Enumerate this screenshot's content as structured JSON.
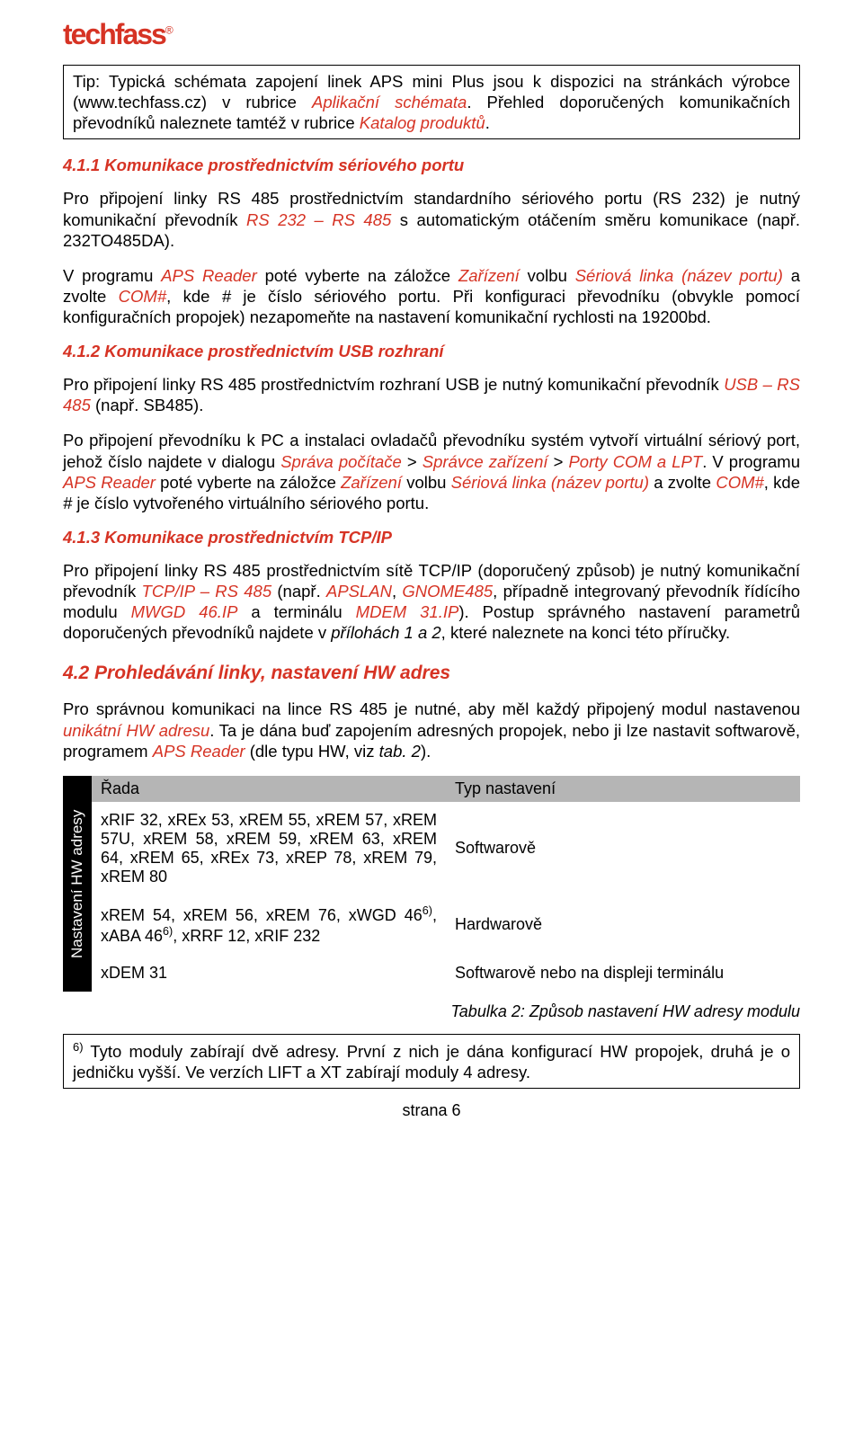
{
  "logo": {
    "text": "techfass",
    "reg": "®"
  },
  "tip": {
    "prefix": "Tip: Typická schémata zapojení linek APS mini Plus jsou k dispozici na stránkách výrobce (www.techfass.cz) v rubrice ",
    "r1": "Aplikační schémata",
    "mid": ". Přehled doporučených komunikačních převodníků naleznete tamtéž v rubrice ",
    "r2": "Katalog produktů",
    "suffix": "."
  },
  "h411": "4.1.1   Komunikace prostřednictvím sériového portu",
  "p411a": {
    "t1": "Pro připojení linky RS 485 prostřednictvím standardního sériového portu (RS 232) je nutný komunikační převodník ",
    "r1": "RS 232 – RS 485",
    "t2": " s automatickým otáčením směru komunikace (např. 232TO485DA)."
  },
  "p411b": {
    "t1": "V programu ",
    "r1": "APS Reader",
    "t2": " poté vyberte na záložce ",
    "r2": "Zařízení",
    "t3": " volbu ",
    "r3": "Sériová linka (název portu)",
    "t4": " a zvolte ",
    "r4": "COM#",
    "t5": ", kde ",
    "i1": "#",
    "t6": " je číslo sériového portu. Při konfiguraci převodníku (obvykle pomocí konfiguračních propojek) nezapomeňte na nastavení komunikační rychlosti na 19200bd."
  },
  "h412": "4.1.2   Komunikace prostřednictvím USB rozhraní",
  "p412a": {
    "t1": "Pro připojení linky RS 485 prostřednictvím rozhraní USB je nutný komunikační převodník ",
    "r1": "USB – RS 485",
    "t2": " (např. SB485)."
  },
  "p412b": {
    "t1": "Po připojení převodníku k PC a instalaci ovladačů převodníku systém vytvoří virtuální sériový port, jehož číslo najdete v dialogu ",
    "r1": "Správa počítače",
    "t2": " > ",
    "r2": "Správce zařízení",
    "t3": " > ",
    "r3": "Porty COM a LPT",
    "t4": ". V programu ",
    "r4": "APS Reader",
    "t5": " poté vyberte na záložce ",
    "r5": "Zařízení",
    "t6": " volbu ",
    "r6": "Sériová linka (název portu)",
    "t7": " a zvolte ",
    "r7": "COM#",
    "t8": ", kde ",
    "i1": "#",
    "t9": " je číslo vytvořeného virtuálního sériového portu."
  },
  "h413": "4.1.3   Komunikace prostřednictvím TCP/IP",
  "p413": {
    "t1": "Pro připojení linky RS 485 prostřednictvím sítě TCP/IP (doporučený způsob) je nutný komunikační převodník ",
    "r1": "TCP/IP – RS 485",
    "t2": " (např. ",
    "r2": "APSLAN",
    "t3": ", ",
    "r3": "GNOME485",
    "t4": ", případně integrovaný převodník řídícího modulu ",
    "r4": "MWGD 46.IP",
    "t5": " a terminálu ",
    "r5": "MDEM 31.IP",
    "t6": "). Postup správného nastavení parametrů doporučených převodníků najdete v ",
    "i1": "přílohách 1 a 2",
    "t7": ", které naleznete na konci této příručky."
  },
  "h42": "4.2 Prohledávání linky, nastavení HW adres",
  "p42": {
    "t1": "Pro správnou komunikaci na lince RS 485 je nutné, aby měl každý připojený modul nastavenou ",
    "r1": "unikátní HW adresu",
    "t2": ". Ta je dána buď zapojením adresných propojek, nebo ji lze nastavit softwarově, programem ",
    "r2": "APS Reader",
    "t3": " (dle typu HW, viz ",
    "i1": "tab. 2",
    "t4": ")."
  },
  "table": {
    "sideLabel": "Nastavení HW adresy",
    "header": {
      "c1": "Řada",
      "c2": "Typ nastavení"
    },
    "rows": [
      {
        "c1": "xRIF 32, xREx 53, xREM 55, xREM 57, xREM 57U, xREM 58, xREM 59, xREM 63, xREM 64, xREM 65, xREx 73, xREP 78, xREM 79, xREM 80",
        "c2": "Softwarově"
      },
      {
        "c1_html": "xREM 54, xREM 56, xREM 76, xWGD 46<sup>6)</sup>, xABA 46<sup>6)</sup>, xRRF 12, xRIF 232",
        "c2": "Hardwarově"
      },
      {
        "c1": "xDEM 31",
        "c2": "Softwarově nebo na displeji terminálu"
      }
    ],
    "caption": "Tabulka 2: Způsob nastavení HW adresy modulu"
  },
  "footnote": {
    "sup": "6)",
    "text": " Tyto moduly zabírají dvě adresy. První z nich je dána konfigurací HW propojek, druhá je o jedničku vyšší. Ve verzích LIFT a XT zabírají moduly 4 adresy."
  },
  "pageNum": "strana 6"
}
